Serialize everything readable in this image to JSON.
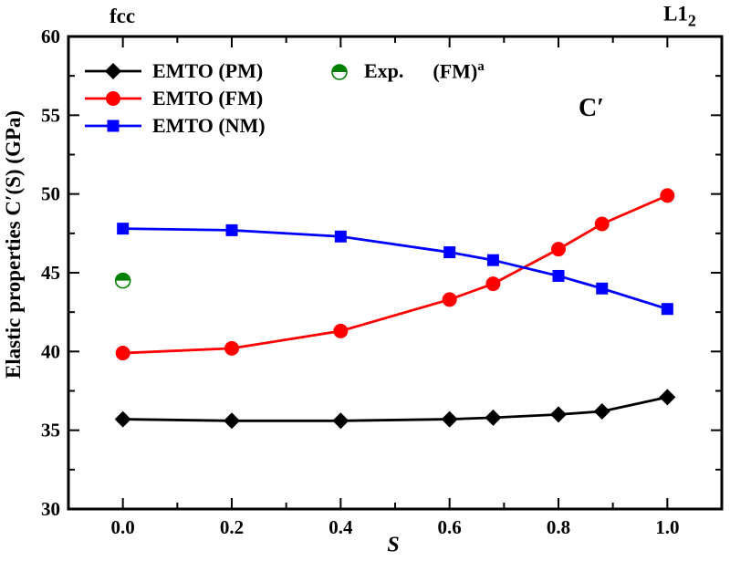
{
  "chart_data": {
    "type": "line",
    "x": [
      0.0,
      0.2,
      0.4,
      0.6,
      0.68,
      0.8,
      0.88,
      1.0
    ],
    "series": [
      {
        "name": "EMTO (PM)",
        "color": "#000000",
        "marker": "diamond",
        "values": [
          35.7,
          35.6,
          35.6,
          35.7,
          35.8,
          36.0,
          36.2,
          37.1
        ]
      },
      {
        "name": "EMTO (FM)",
        "color": "#ff0000",
        "marker": "circle",
        "values": [
          39.9,
          40.2,
          41.3,
          43.3,
          44.3,
          46.5,
          48.1,
          49.9
        ]
      },
      {
        "name": "EMTO (NM)",
        "color": "#0000ff",
        "marker": "square",
        "values": [
          47.8,
          47.7,
          47.3,
          46.3,
          45.8,
          44.8,
          44.0,
          42.7
        ]
      }
    ],
    "exp_point": {
      "name": "Exp.",
      "suffix": "(FM)",
      "superscript": "a",
      "color": "#008000",
      "marker": "half-circle",
      "x": 0.0,
      "value": 44.5
    },
    "xlabel": "S",
    "ylabel": "Elastic properties C′(S) (GPa)",
    "xlim": [
      -0.1,
      1.1
    ],
    "ylim": [
      30,
      60
    ],
    "x_major_ticks": [
      0.0,
      0.2,
      0.4,
      0.6,
      0.8,
      1.0
    ],
    "x_tick_labels": [
      "0.0",
      "0.2",
      "0.4",
      "0.6",
      "0.8",
      "1.0"
    ],
    "x_minor_step": 0.1,
    "y_major_ticks": [
      30,
      35,
      40,
      45,
      50,
      55,
      60
    ],
    "y_tick_labels": [
      "30",
      "35",
      "40",
      "45",
      "50",
      "55",
      "60"
    ],
    "y_minor_step": 2.5,
    "grid": false,
    "legend_position": "top-left"
  },
  "annotations": {
    "phase_left": "fcc",
    "phase_right_base": "L1",
    "phase_right_sub": "2",
    "plot_label": "C′"
  },
  "style": {
    "axis_color": "#000000",
    "background": "#ffffff"
  }
}
